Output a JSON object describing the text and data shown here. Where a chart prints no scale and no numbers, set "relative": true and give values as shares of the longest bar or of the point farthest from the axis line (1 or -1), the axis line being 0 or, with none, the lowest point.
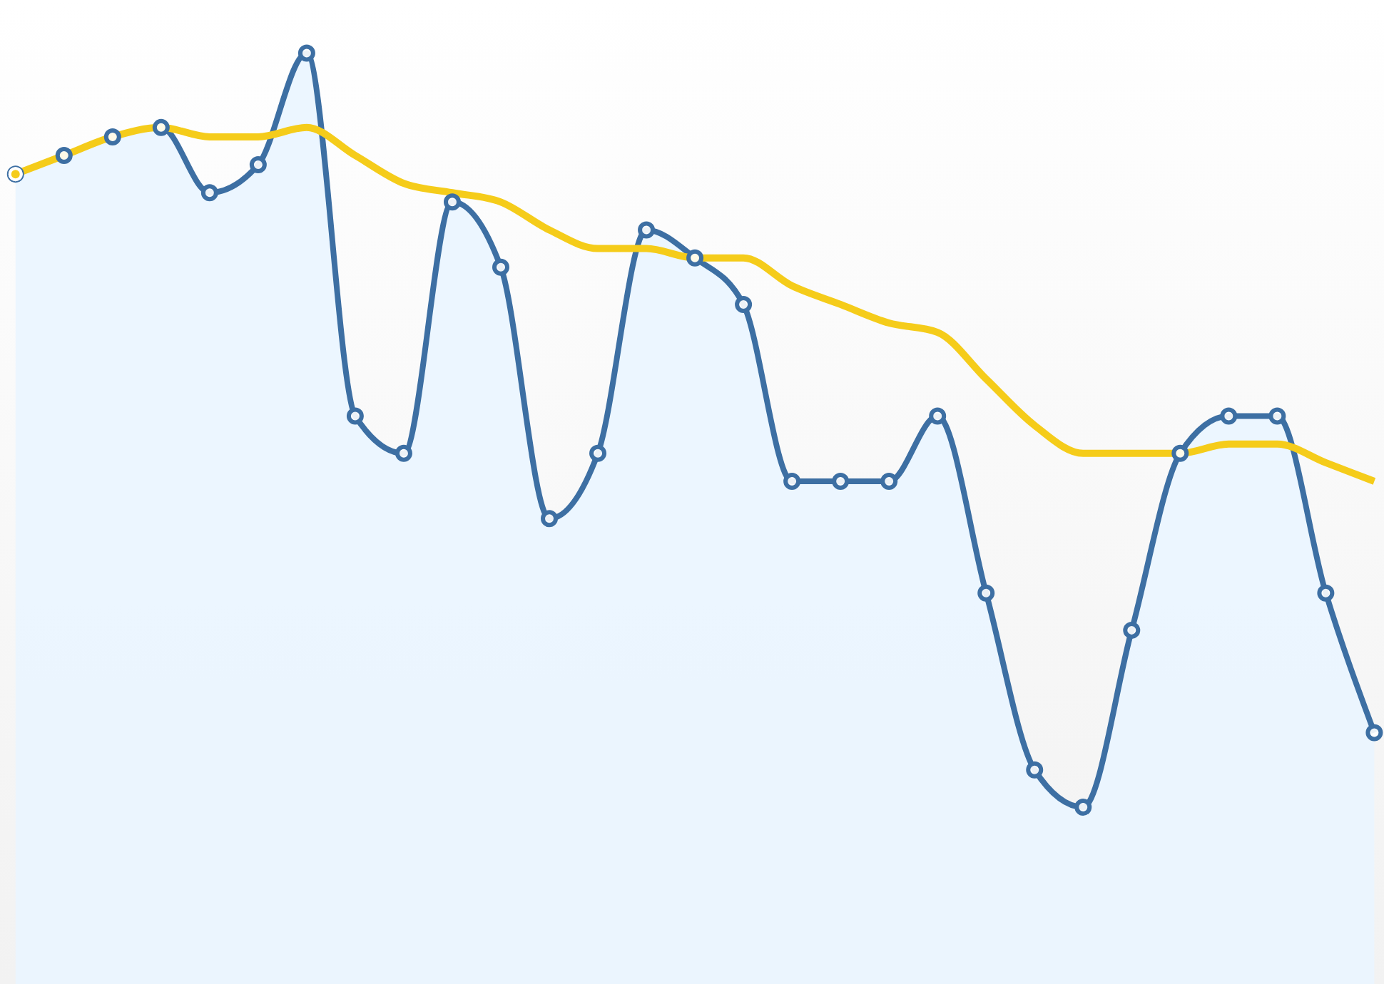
{
  "chart_data": {
    "type": "line",
    "relative": true,
    "categories": [
      null,
      null,
      null,
      null,
      null,
      null,
      null,
      null,
      null,
      null,
      null,
      null,
      null,
      null,
      null,
      null,
      null,
      null,
      null,
      null,
      null,
      null,
      null,
      null,
      null,
      null,
      null,
      null,
      null
    ],
    "series": [
      {
        "type": "area",
        "marker": "circle",
        "color": "#3d6fa3",
        "values": [
          0.87,
          0.89,
          0.91,
          0.92,
          0.85,
          0.88,
          1.0,
          0.61,
          0.57,
          0.84,
          0.77,
          0.5,
          0.57,
          0.81,
          0.78,
          0.73,
          0.54,
          0.54,
          0.54,
          0.61,
          0.42,
          0.23,
          0.19,
          0.38,
          0.57,
          0.61,
          0.61,
          0.42,
          0.27
        ]
      },
      {
        "color": "#f5cc1a",
        "values": [
          0.87,
          0.89,
          0.91,
          0.92,
          0.91,
          0.91,
          0.92,
          0.89,
          0.86,
          0.85,
          0.84,
          0.81,
          0.79,
          0.79,
          0.78,
          0.78,
          0.75,
          0.73,
          0.71,
          0.7,
          0.65,
          0.6,
          0.57,
          0.57,
          0.57,
          0.58,
          0.58,
          0.56,
          0.54
        ]
      }
    ]
  }
}
